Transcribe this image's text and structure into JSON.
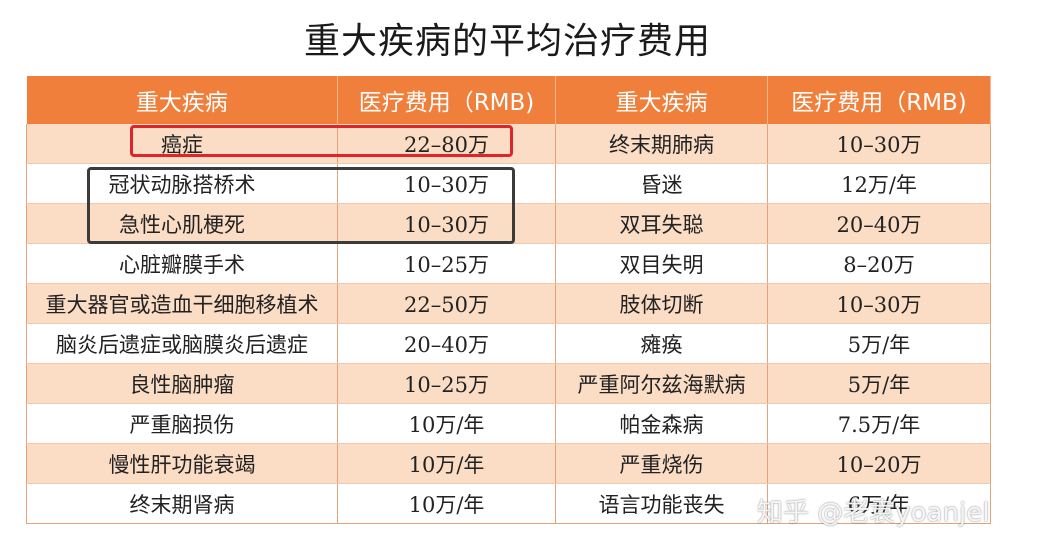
{
  "title": "重大疾病的平均治疗费用",
  "table": {
    "headers": [
      "重大疾病",
      "医疗费用（RMB)",
      "重大疾病",
      "医疗费用（RMB)"
    ],
    "rows": [
      [
        "癌症",
        "22–80万",
        "终末期肺病",
        "10–30万"
      ],
      [
        "冠状动脉搭桥术",
        "10–30万",
        "昏迷",
        "12万/年"
      ],
      [
        "急性心肌梗死",
        "10–30万",
        "双耳失聪",
        "20–40万"
      ],
      [
        "心脏瓣膜手术",
        "10–25万",
        "双目失明",
        "8–20万"
      ],
      [
        "重大器官或造血干细胞移植术",
        "22–50万",
        "肢体切断",
        "10–30万"
      ],
      [
        "脑炎后遗症或脑膜炎后遗症",
        "20–40万",
        "瘫痪",
        "5万/年"
      ],
      [
        "良性脑肿瘤",
        "10–25万",
        "严重阿尔兹海默病",
        "5万/年"
      ],
      [
        "严重脑损伤",
        "10万/年",
        "帕金森病",
        "7.5万/年"
      ],
      [
        "慢性肝功能衰竭",
        "10万/年",
        "严重烧伤",
        "10–20万"
      ],
      [
        "终末期肾病",
        "10万/年",
        "语言功能丧失",
        "6万/年"
      ]
    ]
  },
  "watermark": "知乎 @老袁yoanjel",
  "colors": {
    "header_bg": "#f07f3c",
    "stripe_bg": "#fbdcc5",
    "highlight_red": "#e0242a",
    "highlight_dark": "#3b3b3b"
  }
}
